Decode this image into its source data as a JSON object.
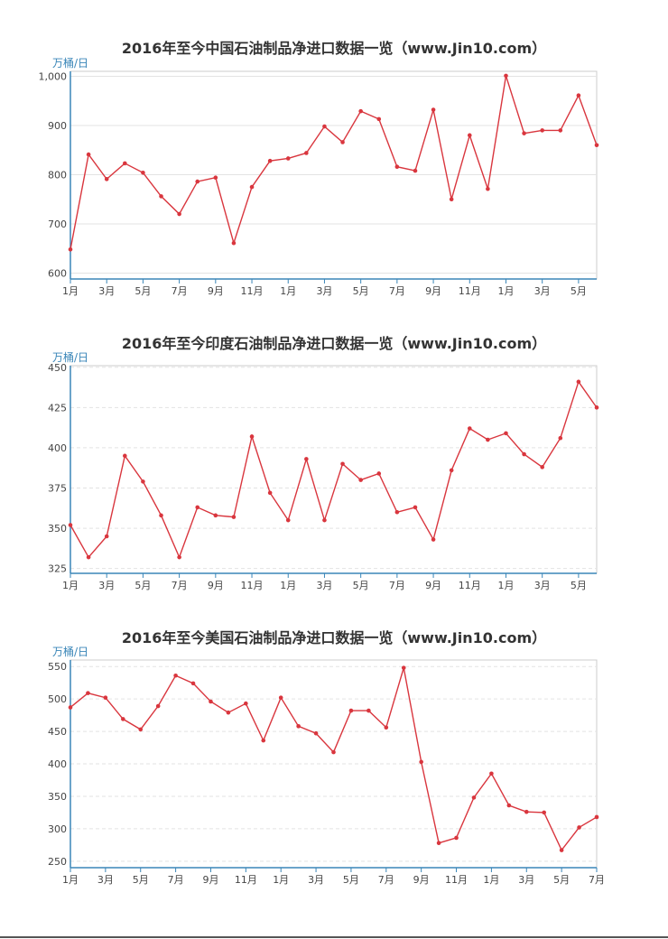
{
  "colors": {
    "line": "#d9363e",
    "axis": "#3a86b8",
    "grid": "#e3e3e3",
    "frame": "#cccccc"
  },
  "chart_data": [
    {
      "type": "line",
      "title": "2016年至今中国石油制品净进口数据一览（www.Jin10.com）",
      "ylabel": "万桶/日",
      "ylim": [
        588,
        1010
      ],
      "yticks": [
        600,
        700,
        800,
        900,
        1000
      ],
      "ytick_labels": [
        "600",
        "700",
        "800",
        "900",
        "1,000"
      ],
      "grid_style": "solid",
      "x_count": 30,
      "xtick_positions": [
        0,
        2,
        4,
        6,
        8,
        10,
        12,
        14,
        16,
        18,
        20,
        22,
        24,
        26,
        28
      ],
      "xtick_labels": [
        "1月",
        "3月",
        "5月",
        "7月",
        "9月",
        "11月",
        "1月",
        "3月",
        "5月",
        "7月",
        "9月",
        "11月",
        "1月",
        "3月",
        "5月"
      ],
      "values": [
        648,
        841,
        791,
        823,
        804,
        756,
        720,
        786,
        794,
        661,
        775,
        828,
        833,
        844,
        898,
        866,
        929,
        913,
        816,
        808,
        932,
        750,
        880,
        771,
        1001,
        884,
        890,
        890,
        961,
        860
      ]
    },
    {
      "type": "line",
      "title": "2016年至今印度石油制品净进口数据一览（www.Jin10.com）",
      "ylabel": "万桶/日",
      "ylim": [
        322,
        451
      ],
      "yticks": [
        325,
        350,
        375,
        400,
        425,
        450
      ],
      "ytick_labels": [
        "325",
        "350",
        "375",
        "400",
        "425",
        "450"
      ],
      "grid_style": "dashed",
      "x_count": 30,
      "xtick_positions": [
        0,
        2,
        4,
        6,
        8,
        10,
        12,
        14,
        16,
        18,
        20,
        22,
        24,
        26,
        28
      ],
      "xtick_labels": [
        "1月",
        "3月",
        "5月",
        "7月",
        "9月",
        "11月",
        "1月",
        "3月",
        "5月",
        "7月",
        "9月",
        "11月",
        "1月",
        "3月",
        "5月"
      ],
      "values": [
        352,
        332,
        345,
        395,
        379,
        358,
        332,
        363,
        358,
        357,
        407,
        372,
        355,
        393,
        355,
        390,
        380,
        384,
        360,
        363,
        343,
        386,
        412,
        405,
        409,
        396,
        388,
        406,
        441,
        425
      ]
    },
    {
      "type": "line",
      "title": "2016年至今美国石油制品净进口数据一览（www.Jin10.com）",
      "ylabel": "万桶/日",
      "ylim": [
        240,
        560
      ],
      "yticks": [
        250,
        300,
        350,
        400,
        450,
        500,
        550
      ],
      "ytick_labels": [
        "250",
        "300",
        "350",
        "400",
        "450",
        "500",
        "550"
      ],
      "grid_style": "dashed",
      "x_count": 31,
      "xtick_positions": [
        0,
        2,
        4,
        6,
        8,
        10,
        12,
        14,
        16,
        18,
        20,
        22,
        24,
        26,
        28,
        30
      ],
      "xtick_labels": [
        "1月",
        "3月",
        "5月",
        "7月",
        "9月",
        "11月",
        "1月",
        "3月",
        "5月",
        "7月",
        "9月",
        "11月",
        "1月",
        "3月",
        "5月",
        "7月"
      ],
      "values": [
        487,
        509,
        502,
        469,
        453,
        489,
        536,
        524,
        496,
        479,
        493,
        436,
        502,
        458,
        447,
        418,
        482,
        482,
        456,
        548,
        403,
        278,
        286,
        348,
        385,
        336,
        326,
        325,
        267,
        302,
        318
      ]
    }
  ]
}
